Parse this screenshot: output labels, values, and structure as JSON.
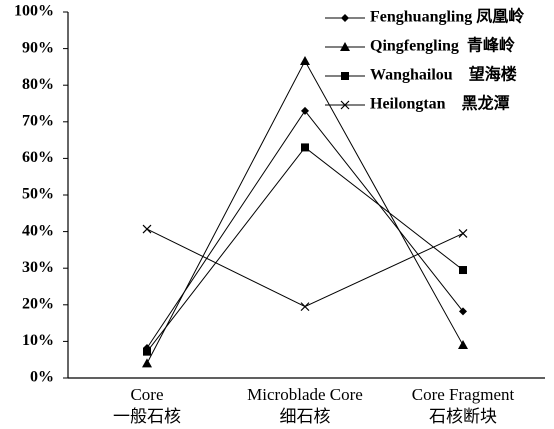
{
  "chart_data": {
    "type": "line",
    "categories": [
      [
        "Core",
        "一般石核"
      ],
      [
        "Microblade Core",
        "细石核"
      ],
      [
        "Core Fragment",
        "石核断块"
      ]
    ],
    "series": [
      {
        "name": "Fenghuangling 凤凰岭",
        "color": "#000000",
        "marker": "diamond",
        "values": [
          8.2,
          73,
          18.2
        ]
      },
      {
        "name": "Qingfengling  青峰岭",
        "color": "#000000",
        "marker": "triangle",
        "values": [
          4,
          86.6,
          9
        ]
      },
      {
        "name": "Wanghailou    望海楼",
        "color": "#000000",
        "marker": "square",
        "values": [
          7.2,
          63,
          29.5
        ]
      },
      {
        "name": "Heilongtan    黑龙潭",
        "color": "#000000",
        "marker": "x",
        "values": [
          40.7,
          19.5,
          39.5
        ]
      }
    ],
    "ylim": [
      0,
      100
    ],
    "yticks": [
      {
        "value": 0,
        "label": "0%"
      },
      {
        "value": 10,
        "label": "10%"
      },
      {
        "value": 20,
        "label": "20%"
      },
      {
        "value": 30,
        "label": "30%"
      },
      {
        "value": 40,
        "label": "40%"
      },
      {
        "value": 50,
        "label": "50%"
      },
      {
        "value": 60,
        "label": "60%"
      },
      {
        "value": 70,
        "label": "70%"
      },
      {
        "value": 80,
        "label": "80%"
      },
      {
        "value": 90,
        "label": "90%"
      },
      {
        "value": 100,
        "label": "100%"
      }
    ],
    "legend": "top-right"
  }
}
